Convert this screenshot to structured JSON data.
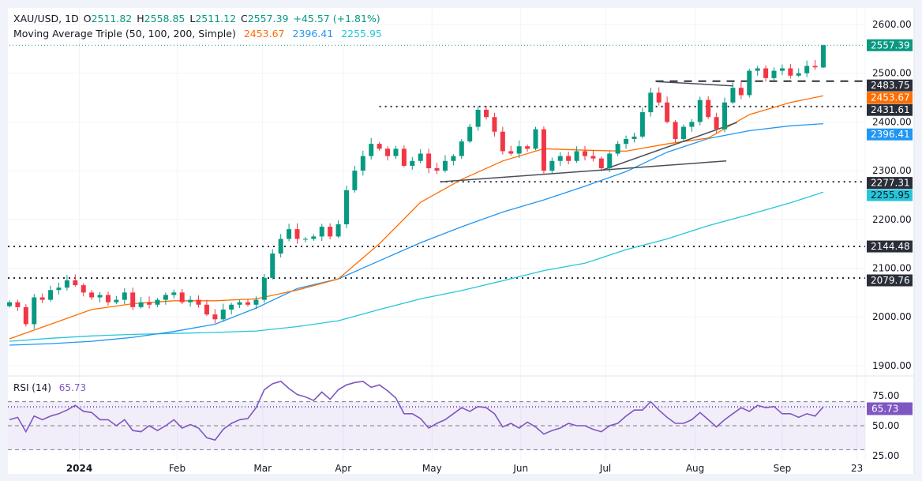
{
  "legend": {
    "symbol": "XAU/USD, 1D",
    "open_label": "O",
    "open": "2511.82",
    "high_label": "H",
    "high": "2558.85",
    "low_label": "L",
    "low": "2511.12",
    "close_label": "C",
    "close": "2557.39",
    "change": "+45.57 (+1.81%)",
    "ma_title": "Moving Average Triple (50, 100, 200, Simple)",
    "ma50": "2453.67",
    "ma100": "2396.41",
    "ma200": "2255.95"
  },
  "rsi_legend": {
    "title": "RSI (14)",
    "value": "65.73"
  },
  "colors": {
    "up": "#089981",
    "down": "#f23645",
    "ma50": "#ff6d00",
    "ma100": "#2196f3",
    "ma200": "#26c6da",
    "rsi": "#7e57c2",
    "level": "#131722"
  },
  "chart_data": {
    "type": "candlestick",
    "symbol": "XAU/USD",
    "timeframe": "1D",
    "ylim": [
      1870,
      2625
    ],
    "price_ticks": [
      "2600.00",
      "2500.00",
      "2400.00",
      "2300.00",
      "2200.00",
      "2100.00",
      "2000.00",
      "1900.00"
    ],
    "price_tick_values": [
      2600,
      2500,
      2400,
      2300,
      2200,
      2100,
      2000,
      1900
    ],
    "x_ticks": [
      {
        "label": "2024",
        "bar": 8.5
      },
      {
        "label": "Feb",
        "bar": 20.4
      },
      {
        "label": "Mar",
        "bar": 30.8
      },
      {
        "label": "Apr",
        "bar": 40.6
      },
      {
        "label": "May",
        "bar": 51.4
      },
      {
        "label": "Jun",
        "bar": 62.2
      },
      {
        "label": "Jul",
        "bar": 72.5
      },
      {
        "label": "Aug",
        "bar": 83.4
      },
      {
        "label": "Sep",
        "bar": 94
      },
      {
        "label": "23",
        "bar": 103.1
      }
    ],
    "closes": [
      2030,
      2020,
      1985,
      2040,
      2035,
      2055,
      2060,
      2075,
      2065,
      2050,
      2040,
      2045,
      2030,
      2035,
      2050,
      2020,
      2030,
      2025,
      2035,
      2045,
      2050,
      2030,
      2035,
      2025,
      2005,
      1995,
      2015,
      2025,
      2030,
      2025,
      2035,
      2080,
      2130,
      2160,
      2180,
      2160,
      2160,
      2165,
      2185,
      2165,
      2190,
      2260,
      2300,
      2330,
      2355,
      2345,
      2330,
      2345,
      2310,
      2320,
      2335,
      2305,
      2300,
      2320,
      2330,
      2360,
      2390,
      2425,
      2410,
      2380,
      2340,
      2335,
      2350,
      2345,
      2385,
      2300,
      2320,
      2330,
      2320,
      2340,
      2330,
      2325,
      2305,
      2335,
      2355,
      2365,
      2370,
      2420,
      2460,
      2440,
      2400,
      2365,
      2390,
      2400,
      2445,
      2410,
      2385,
      2440,
      2470,
      2455,
      2505,
      2510,
      2490,
      2505,
      2510,
      2495,
      2500,
      2515,
      2512,
      2557.39
    ],
    "last_bar": {
      "open": 2511.82,
      "high": 2558.85,
      "low": 2511.12,
      "close": 2557.39
    },
    "ma50": [
      1955,
      1985,
      2015,
      2027,
      2033,
      2033,
      2037,
      2055,
      2078,
      2150,
      2235,
      2282,
      2320,
      2345,
      2342,
      2340,
      2355,
      2367,
      2415,
      2440,
      2453.67
    ],
    "ma100": [
      1942,
      1945,
      1950,
      1958,
      1970,
      1985,
      2018,
      2058,
      2078,
      2115,
      2152,
      2185,
      2215,
      2240,
      2268,
      2298,
      2338,
      2366,
      2382,
      2392,
      2396.41
    ],
    "ma200": [
      1950,
      1956,
      1961,
      1964,
      1966,
      1968,
      1971,
      1980,
      1992,
      2015,
      2037,
      2054,
      2074,
      2095,
      2110,
      2138,
      2160,
      2187,
      2210,
      2234,
      2255.95
    ],
    "levels": [
      {
        "value": 2557.39,
        "label": "2557.39",
        "style": "dotted",
        "color": "#089981",
        "from_bar": 0,
        "box_color": "#089981",
        "box_text": "#ffffff"
      },
      {
        "value": 2483.75,
        "label": "2483.75",
        "style": "dashed",
        "color": "#2a2e39",
        "from_bar": 78.6,
        "box_color": "#2a2e39",
        "box_text": "#ffffff"
      },
      {
        "value": 2453.67,
        "label": "2453.67",
        "style": "none",
        "color": "#ff6d00",
        "from_bar": 0,
        "box_color": "#ff6d00",
        "box_text": "#ffffff"
      },
      {
        "value": 2431.61,
        "label": "2431.61",
        "style": "dotted",
        "color": "#2a2e39",
        "from_bar": 45,
        "box_color": "#2a2e39",
        "box_text": "#ffffff"
      },
      {
        "value": 2396.41,
        "label": "2396.41",
        "style": "none",
        "color": "#2196f3",
        "from_bar": 0,
        "box_color": "#2196f3",
        "box_text": "#ffffff"
      },
      {
        "value": 2277.31,
        "label": "2277.31",
        "style": "dotted",
        "color": "#2a2e39",
        "from_bar": 52.4,
        "box_color": "#2a2e39",
        "box_text": "#ffffff"
      },
      {
        "value": 2255.95,
        "label": "2255.95",
        "style": "none",
        "color": "#26c6da",
        "from_bar": 0,
        "box_color": "#26c6da",
        "box_text": "#131722"
      },
      {
        "value": 2144.48,
        "label": "2144.48",
        "style": "dotted",
        "color": "#2a2e39",
        "from_bar": -1,
        "box_color": "#2a2e39",
        "box_text": "#ffffff"
      },
      {
        "value": 2079.76,
        "label": "2079.76",
        "style": "dotted",
        "color": "#2a2e39",
        "from_bar": -1,
        "box_color": "#2a2e39",
        "box_text": "#ffffff"
      }
    ],
    "trendlines": [
      {
        "from": [
          52.4,
          2277
        ],
        "to": [
          87.2,
          2320
        ]
      },
      {
        "from": [
          71.9,
          2300
        ],
        "to": [
          88.5,
          2399
        ]
      },
      {
        "from": [
          78.6,
          2483
        ],
        "to": [
          88.0,
          2474
        ]
      }
    ],
    "rsi": {
      "period": 14,
      "ylim": [
        20,
        90
      ],
      "ticks": [
        "75.00",
        "50.00",
        "25.00"
      ],
      "tick_values": [
        75,
        50,
        25
      ],
      "bands": [
        70,
        50,
        30
      ],
      "current": 65.73,
      "current_label": "65.73",
      "values": [
        55,
        57,
        45,
        58,
        55,
        58,
        60,
        63,
        67,
        62,
        61,
        55,
        55,
        50,
        55,
        46,
        45,
        50,
        46,
        50,
        55,
        48,
        51,
        48,
        40,
        38,
        47,
        52,
        55,
        56,
        65,
        80,
        85,
        87,
        81,
        76,
        74,
        71,
        78,
        72,
        80,
        84,
        86,
        87,
        82,
        84,
        79,
        73,
        60,
        60,
        56,
        48,
        52,
        55,
        60,
        65,
        62,
        66,
        65,
        60,
        49,
        52,
        48,
        53,
        49,
        43,
        46,
        48,
        52,
        50,
        50,
        47,
        45,
        50,
        52,
        58,
        63,
        63,
        70,
        63,
        57,
        52,
        52,
        55,
        61,
        55,
        49,
        55,
        60,
        65,
        62,
        67,
        65,
        66,
        60,
        60,
        57,
        60,
        58,
        65.73
      ]
    }
  }
}
